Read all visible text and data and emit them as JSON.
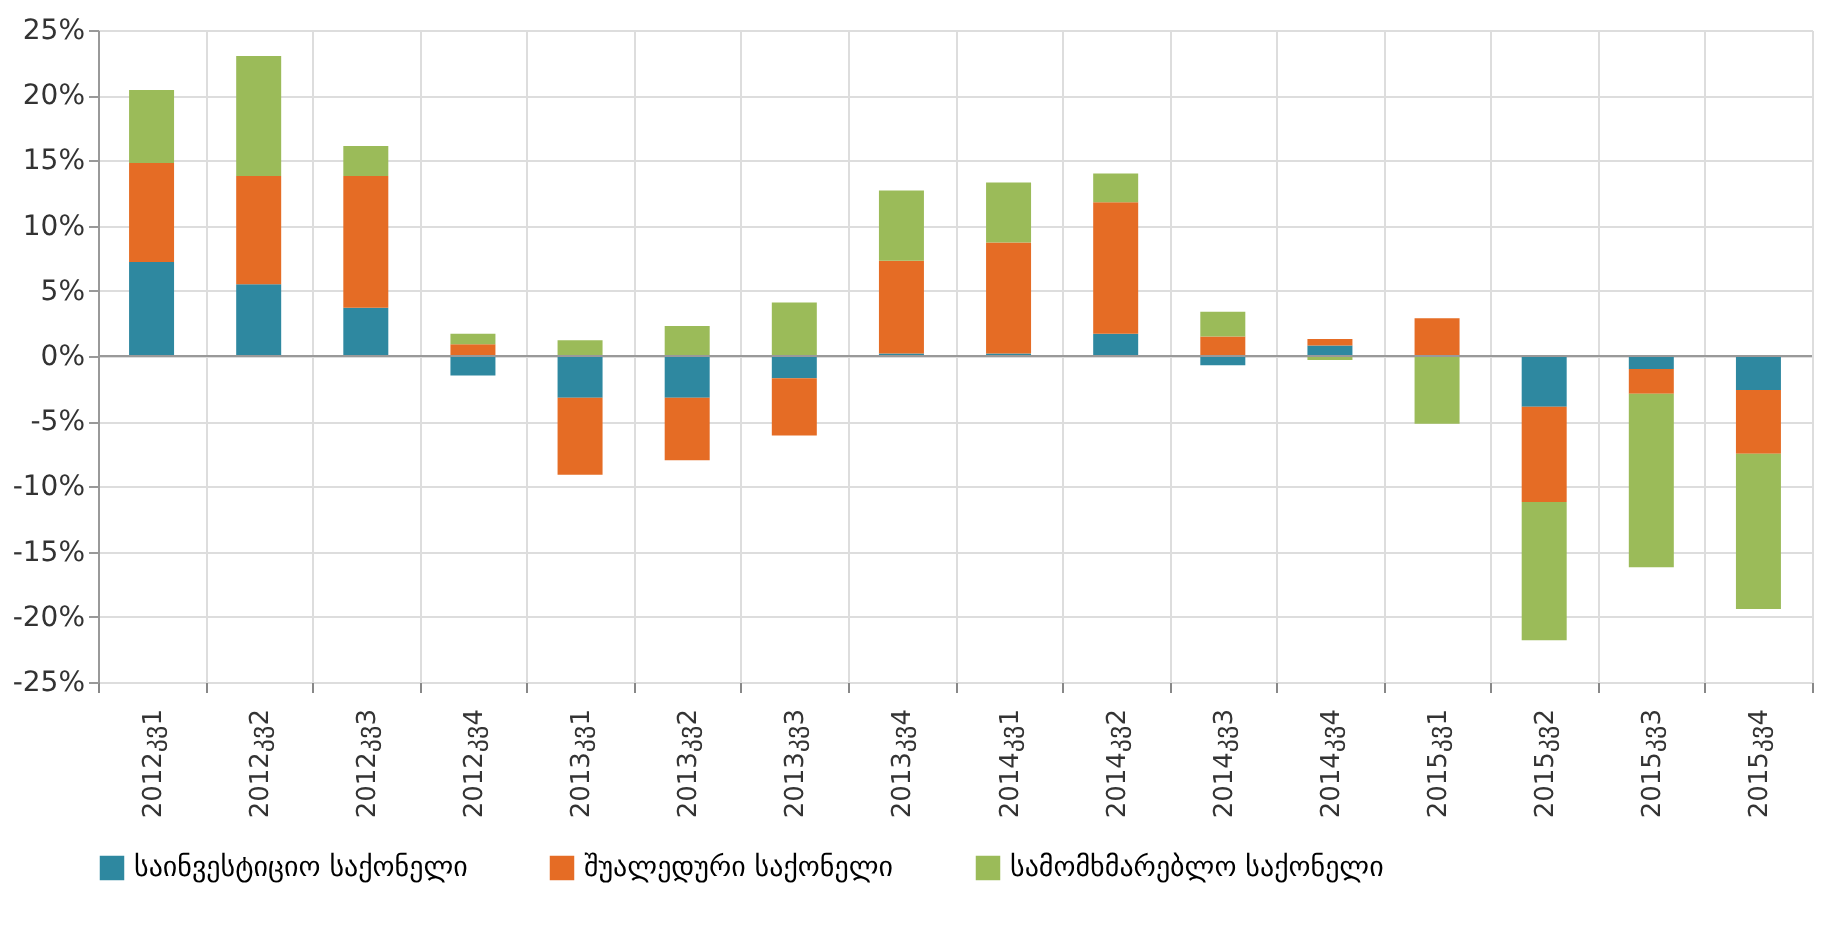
{
  "chart_data": {
    "type": "bar",
    "stacked": true,
    "categories": [
      "2012კვ1",
      "2012კვ2",
      "2012კვ3",
      "2012კვ4",
      "2013კვ1",
      "2013კვ2",
      "2013კვ3",
      "2013კვ4",
      "2014კვ1",
      "2014კვ2",
      "2014კვ3",
      "2014კვ4",
      "2015კვ1",
      "2015კვ2",
      "2015კვ3",
      "2015კვ4"
    ],
    "series": [
      {
        "name": "საინვესტიციო საქონელი",
        "color": "#2e88a0",
        "values": [
          7.2,
          5.5,
          3.7,
          -1.5,
          -3.2,
          -3.2,
          -1.7,
          0.2,
          0.2,
          1.7,
          -0.7,
          0.8,
          0,
          -3.9,
          -1.0,
          -2.6
        ]
      },
      {
        "name": "შუალედური საქონელი",
        "color": "#e56c25",
        "values": [
          7.6,
          8.3,
          10.1,
          0.9,
          -5.9,
          -4.8,
          -4.4,
          7.1,
          8.5,
          10.1,
          1.5,
          0.5,
          2.9,
          -7.3,
          -1.9,
          -4.9
        ]
      },
      {
        "name": "სამომხმარებლო საქონელი",
        "color": "#9bbb59",
        "values": [
          5.6,
          9.2,
          2.3,
          0.8,
          1.2,
          2.3,
          4.1,
          5.4,
          4.6,
          2.2,
          1.9,
          -0.3,
          -5.2,
          -10.6,
          -13.3,
          -11.9
        ]
      }
    ],
    "ylim": [
      -25,
      25
    ],
    "yticks": [
      {
        "value": -25,
        "label": "-25%"
      },
      {
        "value": -20,
        "label": "-20%"
      },
      {
        "value": -15,
        "label": "-15%"
      },
      {
        "value": -10,
        "label": "-10%"
      },
      {
        "value": -5,
        "label": "-5%"
      },
      {
        "value": 0,
        "label": "0%"
      },
      {
        "value": 5,
        "label": "5%"
      },
      {
        "value": 10,
        "label": "10%"
      },
      {
        "value": 15,
        "label": "15%"
      },
      {
        "value": 20,
        "label": "20%"
      },
      {
        "value": 25,
        "label": "25%"
      }
    ],
    "grid": true,
    "legend": "bottom"
  }
}
